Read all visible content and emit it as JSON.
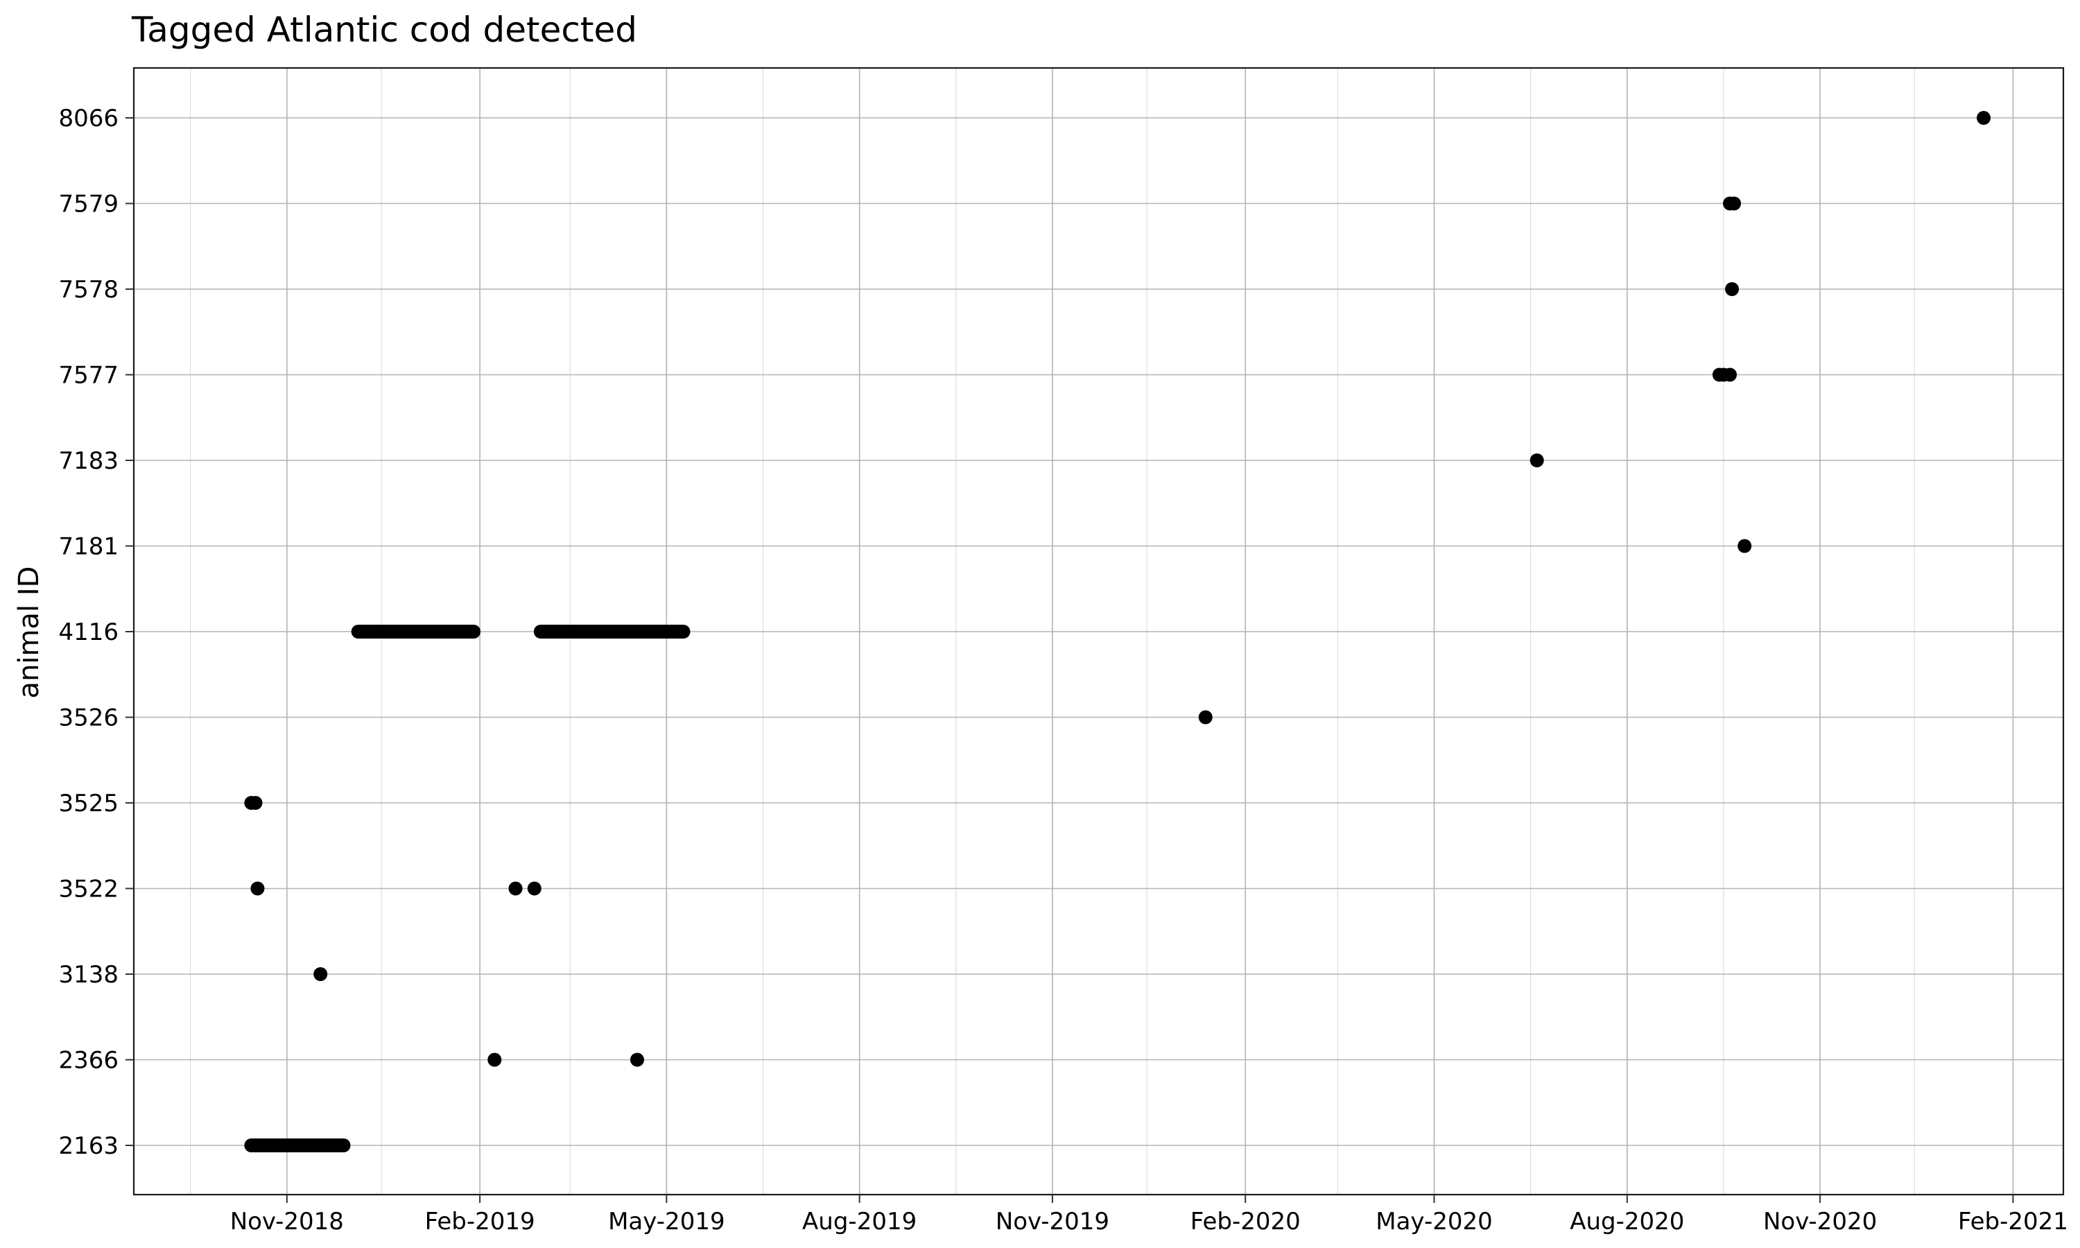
{
  "chart_data": {
    "type": "scatter",
    "title": "Tagged Atlantic cod detected",
    "xlabel": "",
    "ylabel": "animal ID",
    "x_type": "date",
    "xlim": [
      "2018-08-20",
      "2021-02-25"
    ],
    "x_ticks": [
      {
        "date": "2018-11-01",
        "label": "Nov-2018"
      },
      {
        "date": "2019-02-01",
        "label": "Feb-2019"
      },
      {
        "date": "2019-05-01",
        "label": "May-2019"
      },
      {
        "date": "2019-08-01",
        "label": "Aug-2019"
      },
      {
        "date": "2019-11-01",
        "label": "Nov-2019"
      },
      {
        "date": "2020-02-01",
        "label": "Feb-2020"
      },
      {
        "date": "2020-05-01",
        "label": "May-2020"
      },
      {
        "date": "2020-08-01",
        "label": "Aug-2020"
      },
      {
        "date": "2020-11-01",
        "label": "Nov-2020"
      },
      {
        "date": "2021-02-01",
        "label": "Feb-2021"
      }
    ],
    "x_minor_ticks": [
      "2018-09-16",
      "2018-12-16",
      "2019-03-16",
      "2019-06-16",
      "2019-09-16",
      "2019-12-16",
      "2020-03-16",
      "2020-06-16",
      "2020-09-16",
      "2020-12-16"
    ],
    "categories": [
      "2163",
      "2366",
      "3138",
      "3522",
      "3525",
      "3526",
      "4116",
      "7181",
      "7183",
      "7577",
      "7578",
      "7579",
      "8066"
    ],
    "grid": true,
    "legend": "none",
    "series": [
      {
        "values": [
          {
            "x": "2018-10-15",
            "y": "3525"
          },
          {
            "x": "2018-10-17",
            "y": "3525"
          },
          {
            "x": "2018-10-18",
            "y": "3522"
          },
          {
            "x": "2018-11-17",
            "y": "3138"
          },
          {
            "x": "2019-02-08",
            "y": "2366"
          },
          {
            "x": "2019-04-17",
            "y": "2366"
          },
          {
            "x": "2019-02-18",
            "y": "3522"
          },
          {
            "x": "2019-02-27",
            "y": "3522"
          },
          {
            "x": "2020-01-13",
            "y": "3526"
          },
          {
            "x": "2020-06-19",
            "y": "7183"
          },
          {
            "x": "2020-09-14",
            "y": "7577"
          },
          {
            "x": "2020-09-16",
            "y": "7577"
          },
          {
            "x": "2020-09-19",
            "y": "7577"
          },
          {
            "x": "2020-09-19",
            "y": "7579"
          },
          {
            "x": "2020-09-21",
            "y": "7579"
          },
          {
            "x": "2020-09-20",
            "y": "7578"
          },
          {
            "x": "2020-09-26",
            "y": "7181"
          },
          {
            "x": "2021-01-18",
            "y": "8066"
          }
        ]
      }
    ],
    "continuous_detections": [
      {
        "y": "2163",
        "start": "2018-10-15",
        "end": "2018-11-28"
      },
      {
        "y": "4116",
        "start": "2018-12-05",
        "end": "2019-01-29"
      },
      {
        "y": "4116",
        "start": "2019-03-02",
        "end": "2019-05-09"
      }
    ]
  }
}
